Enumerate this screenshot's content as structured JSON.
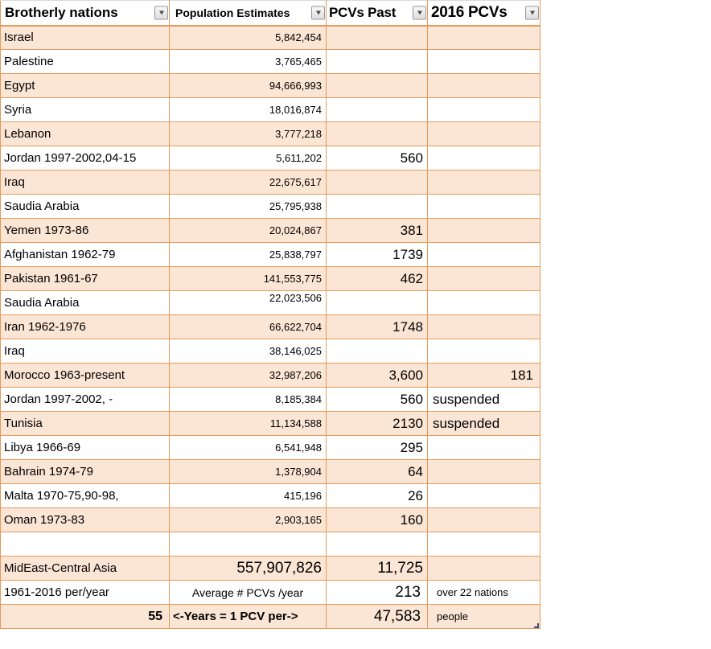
{
  "colors": {
    "row_fill": "#FBE5D4",
    "grid_border": "#E59A5B"
  },
  "table": {
    "headers": [
      {
        "label": "Brotherly nations"
      },
      {
        "label": "Population Estimates"
      },
      {
        "label": "PCVs Past"
      },
      {
        "label": "2016 PCVs"
      }
    ],
    "rows": [
      {
        "nation": "Israel",
        "population": "5,842,454",
        "pcvs_past": "",
        "pcvs_2016": ""
      },
      {
        "nation": "Palestine",
        "population": "3,765,465",
        "pcvs_past": "",
        "pcvs_2016": ""
      },
      {
        "nation": "Egypt",
        "population": "94,666,993",
        "pcvs_past": "",
        "pcvs_2016": ""
      },
      {
        "nation": "Syria",
        "population": "18,016,874",
        "pcvs_past": "",
        "pcvs_2016": ""
      },
      {
        "nation": "Lebanon",
        "population": "3,777,218",
        "pcvs_past": "",
        "pcvs_2016": ""
      },
      {
        "nation": "Jordan 1997-2002,04-15",
        "population": "5,611,202",
        "pcvs_past": "560",
        "pcvs_2016": ""
      },
      {
        "nation": "Iraq",
        "population": "22,675,617",
        "pcvs_past": "",
        "pcvs_2016": ""
      },
      {
        "nation": "Saudia Arabia",
        "population": "25,795,938",
        "pcvs_past": "",
        "pcvs_2016": ""
      },
      {
        "nation": "Yemen 1973-86",
        "population": "20,024,867",
        "pcvs_past": "381",
        "pcvs_2016": ""
      },
      {
        "nation": "Afghanistan  1962-79",
        "population": "25,838,797",
        "pcvs_past": "1739",
        "pcvs_2016": ""
      },
      {
        "nation": "Pakistan 1961-67",
        "population": "141,553,775",
        "pcvs_past": "462",
        "pcvs_2016": ""
      },
      {
        "nation": "Saudia Arabia",
        "population": "22,023,506",
        "pcvs_past": "",
        "pcvs_2016": ""
      },
      {
        "nation": "Iran 1962-1976",
        "population": "66,622,704",
        "pcvs_past": "1748",
        "pcvs_2016": ""
      },
      {
        "nation": "Iraq",
        "population": "38,146,025",
        "pcvs_past": "",
        "pcvs_2016": ""
      },
      {
        "nation": "Morocco 1963-present",
        "population": "32,987,206",
        "pcvs_past": "3,600",
        "pcvs_2016": "181"
      },
      {
        "nation": "Jordan 1997-2002, -",
        "population": "8,185,384",
        "pcvs_past": "560",
        "pcvs_2016": "suspended"
      },
      {
        "nation": "Tunisia",
        "population": "11,134,588",
        "pcvs_past": "2130",
        "pcvs_2016": "suspended"
      },
      {
        "nation": "Libya 1966-69",
        "population": "6,541,948",
        "pcvs_past": "295",
        "pcvs_2016": ""
      },
      {
        "nation": "Bahrain 1974-79",
        "population": "1,378,904",
        "pcvs_past": "64",
        "pcvs_2016": ""
      },
      {
        "nation": "Malta 1970-75,90-98,",
        "population": "415,196",
        "pcvs_past": "26",
        "pcvs_2016": ""
      },
      {
        "nation": "Oman 1973-83",
        "population": "2,903,165",
        "pcvs_past": "160",
        "pcvs_2016": ""
      },
      {
        "nation": "",
        "population": "",
        "pcvs_past": "",
        "pcvs_2016": ""
      },
      {
        "nation": "MidEast-Central Asia",
        "population": "557,907,826",
        "pcvs_past": "11,725",
        "pcvs_2016": ""
      },
      {
        "nation": "1961-2016 per/year",
        "population": "Average # PCVs /year",
        "pcvs_past": "213",
        "pcvs_2016": "over 22 nations"
      },
      {
        "nation": "55",
        "population": "<-Years = 1 PCV per->",
        "pcvs_past": "47,583",
        "pcvs_2016": "people"
      }
    ]
  }
}
